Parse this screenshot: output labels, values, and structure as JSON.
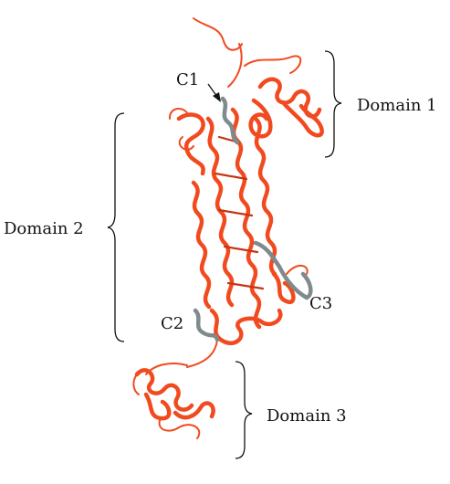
{
  "labels": {
    "domain1": "Domain 1",
    "domain2": "Domain 2",
    "domain3": "Domain 3",
    "c1": "C1",
    "c2": "C2",
    "c3": "C3"
  },
  "colors": {
    "protein": "#f24a1f",
    "cysteine_region": "#7f8a8c",
    "text": "#111111"
  }
}
